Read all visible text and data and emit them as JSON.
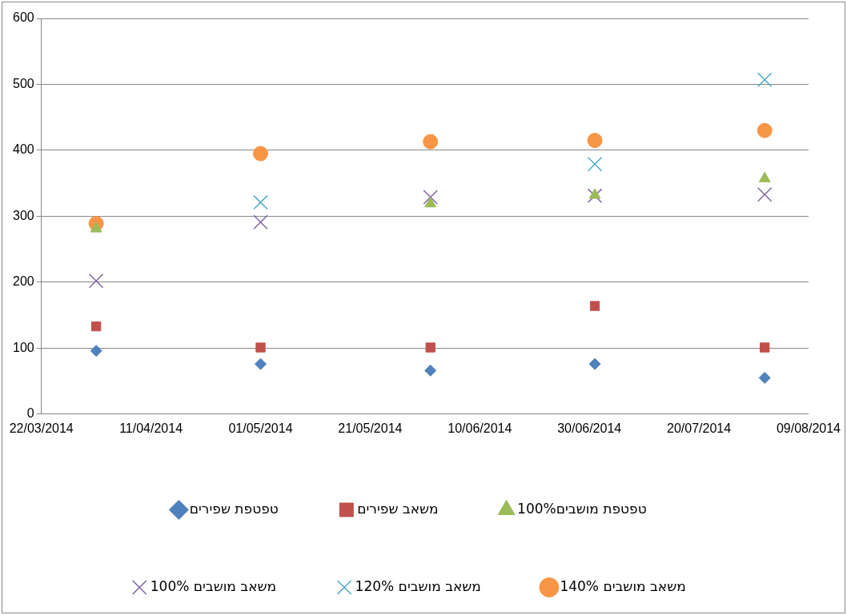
{
  "chart_data": {
    "type": "scatter",
    "x": [
      "2014-04-01",
      "2014-05-01",
      "2014-06-01",
      "2014-07-01",
      "2014-08-01"
    ],
    "series": [
      {
        "name": "טפטפת שפירים",
        "color": "#4f81bd",
        "marker": "diamond",
        "values": [
          96,
          76,
          66,
          76,
          55
        ]
      },
      {
        "name": "משאב שפירים",
        "color": "#c0504d",
        "marker": "square",
        "values": [
          133,
          101,
          101,
          164,
          101
        ]
      },
      {
        "name": "טפטפת מושבים100%",
        "color": "#9bbb59",
        "marker": "triangle",
        "values": [
          281,
          null,
          319,
          332,
          357
        ]
      },
      {
        "name": "משאב מושבים 100%",
        "color": "#8064a2",
        "marker": "cross",
        "values": [
          202,
          291,
          329,
          331,
          333
        ]
      },
      {
        "name": "משאב מושבים 120%",
        "color": "#4bacc6",
        "marker": "cross",
        "values": [
          null,
          321,
          null,
          379,
          507
        ]
      },
      {
        "name": "משאב מושבים 140%",
        "color": "#f79646",
        "marker": "circle",
        "values": [
          289,
          395,
          413,
          415,
          430
        ]
      }
    ],
    "xlim": [
      "2014-03-22",
      "2014-08-09"
    ],
    "xticks": [
      {
        "value": "2014-03-22",
        "label": "22/03/2014"
      },
      {
        "value": "2014-04-11",
        "label": "11/04/2014"
      },
      {
        "value": "2014-05-01",
        "label": "01/05/2014"
      },
      {
        "value": "2014-05-21",
        "label": "21/05/2014"
      },
      {
        "value": "2014-06-10",
        "label": "10/06/2014"
      },
      {
        "value": "2014-06-30",
        "label": "30/06/2014"
      },
      {
        "value": "2014-07-20",
        "label": "20/07/2014"
      },
      {
        "value": "2014-08-09",
        "label": "09/08/2014"
      }
    ],
    "ylim": [
      0,
      600
    ],
    "yticks": [
      0,
      100,
      200,
      300,
      400,
      500,
      600
    ],
    "grid": "y",
    "legend": "bottom"
  }
}
